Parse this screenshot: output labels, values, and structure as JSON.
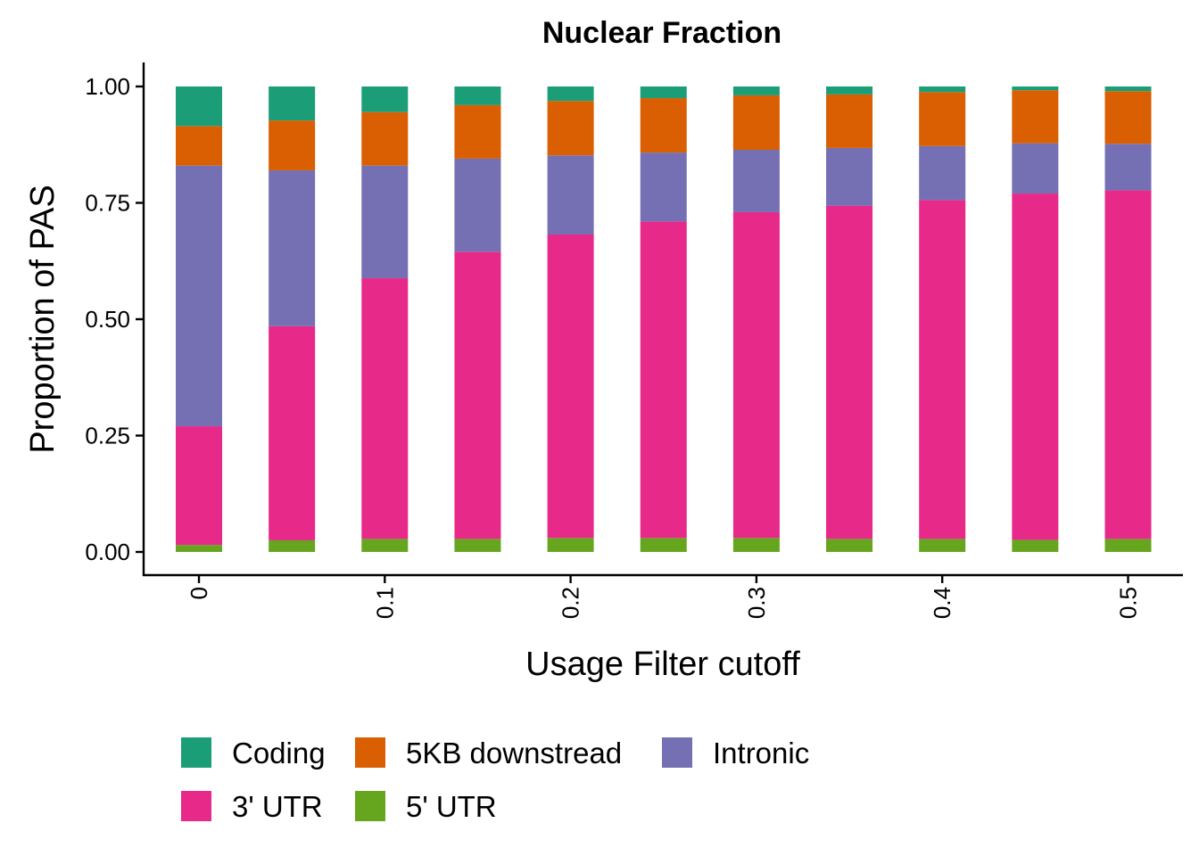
{
  "chart_data": {
    "type": "bar",
    "stacked": true,
    "title": "Nuclear Fraction",
    "xlabel": "Usage Filter cutoff",
    "ylabel": "Proportion of PAS",
    "x": [
      0,
      0.05,
      0.1,
      0.15,
      0.2,
      0.25,
      0.3,
      0.35,
      0.4,
      0.45,
      0.5
    ],
    "x_ticks": [
      {
        "value": 0,
        "label": "0"
      },
      {
        "value": 0.1,
        "label": "0.1"
      },
      {
        "value": 0.2,
        "label": "0.2"
      },
      {
        "value": 0.3,
        "label": "0.3"
      },
      {
        "value": 0.4,
        "label": "0.4"
      },
      {
        "value": 0.5,
        "label": "0.5"
      }
    ],
    "ylim": [
      0,
      1
    ],
    "y_ticks": [
      {
        "value": 0,
        "label": "0.00"
      },
      {
        "value": 0.25,
        "label": "0.25"
      },
      {
        "value": 0.5,
        "label": "0.50"
      },
      {
        "value": 0.75,
        "label": "0.75"
      },
      {
        "value": 1,
        "label": "1.00"
      }
    ],
    "legend_position": "bottom",
    "series": [
      {
        "name": "5' UTR",
        "color": "#66A61E",
        "values": [
          0.015,
          0.025,
          0.028,
          0.028,
          0.03,
          0.03,
          0.03,
          0.028,
          0.028,
          0.026,
          0.028
        ]
      },
      {
        "name": "3' UTR",
        "color": "#E7298A",
        "values": [
          0.255,
          0.46,
          0.56,
          0.617,
          0.652,
          0.68,
          0.7,
          0.716,
          0.728,
          0.744,
          0.749
        ]
      },
      {
        "name": "Intronic",
        "color": "#7570B3",
        "values": [
          0.56,
          0.335,
          0.242,
          0.2,
          0.17,
          0.148,
          0.134,
          0.124,
          0.116,
          0.108,
          0.1
        ]
      },
      {
        "name": "5KB downstread",
        "color": "#D95F02",
        "values": [
          0.085,
          0.107,
          0.115,
          0.115,
          0.117,
          0.117,
          0.117,
          0.115,
          0.116,
          0.114,
          0.113
        ]
      },
      {
        "name": "Coding",
        "color": "#1B9E77",
        "values": [
          0.085,
          0.073,
          0.055,
          0.04,
          0.031,
          0.025,
          0.019,
          0.017,
          0.012,
          0.008,
          0.01
        ]
      }
    ],
    "legend_order": [
      "Coding",
      "5KB downstread",
      "Intronic",
      "3' UTR",
      "5' UTR"
    ]
  }
}
